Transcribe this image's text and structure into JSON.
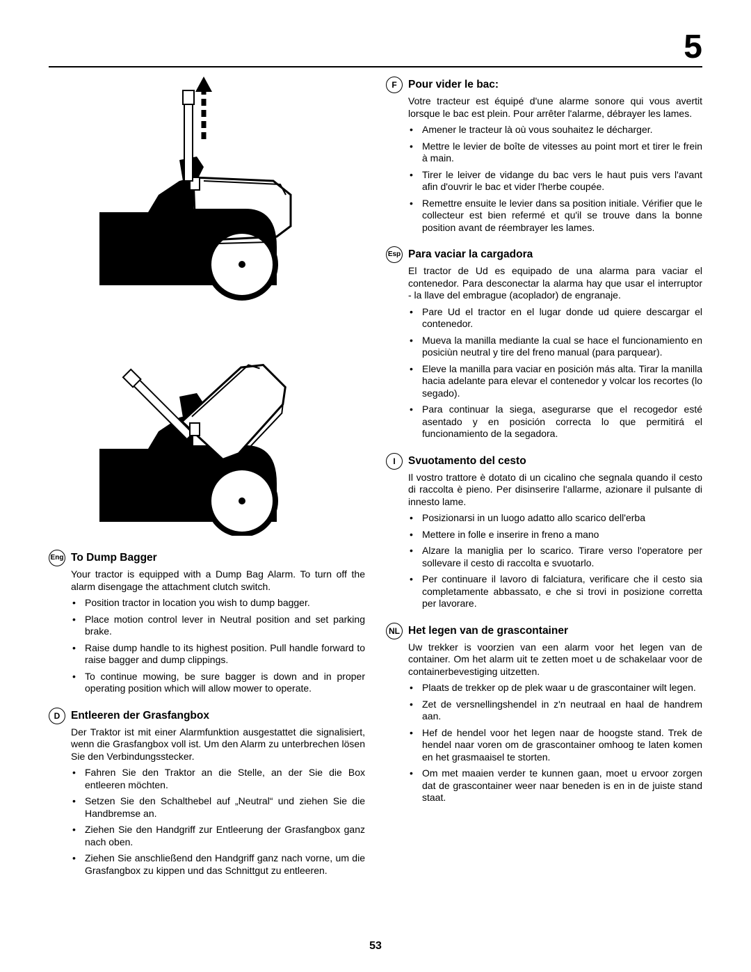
{
  "page_top": "5",
  "page_bottom": "53",
  "left": {
    "sections": [
      {
        "lang": "Eng",
        "title": "To Dump Bagger",
        "intro": "Your tractor is equipped with a Dump Bag Alarm. To turn off the alarm disengage the attachment clutch switch.",
        "bullets": [
          "Position tractor in location you wish to dump bagger.",
          "Place motion control lever in Neutral position and set parking brake.",
          "Raise dump handle to its highest position. Pull handle forward to raise bagger and dump clippings.",
          "To continue mowing, be sure bagger is down and in proper operating position which will allow mower to operate."
        ]
      },
      {
        "lang": "D",
        "title": "Entleeren der Grasfangbox",
        "intro": "Der Traktor ist mit einer Alarmfunktion ausgestattet die signalisiert, wenn die Grasfangbox voll ist. Um den Alarm zu unterbrechen lösen Sie den Verbindungsstecker.",
        "bullets": [
          "Fahren Sie den Traktor an die Stelle, an der Sie die Box entleeren möchten.",
          "Setzen Sie den Schalthebel auf „Neutral“ und ziehen Sie die Handbremse an.",
          "Ziehen Sie den Handgriff zur Entleerung der Grasfangbox ganz nach oben.",
          "Ziehen Sie anschließend den Handgriff ganz nach vorne, um die Grasfangbox zu kippen und das Schnittgut zu entleeren."
        ]
      }
    ]
  },
  "right": {
    "sections": [
      {
        "lang": "F",
        "title": "Pour vider le bac:",
        "intro": "Votre tracteur est équipé d'une alarme sonore qui vous avertit lorsque le bac est plein. Pour arrêter l'alarme, débrayer les lames.",
        "bullets": [
          "Amener le tracteur là où vous souhaitez le décharger.",
          "Mettre le levier de boîte de vitesses au point mort et tirer le frein à main.",
          "Tirer le leiver de vidange du bac vers le haut puis vers l'avant afin d'ouvrir le bac et vider l'herbe coupée.",
          "Remettre ensuite le levier dans sa position initiale. Vérifier que le collecteur est bien refermé et qu'il se trouve dans la bonne position avant de réembrayer les lames."
        ]
      },
      {
        "lang": "Esp",
        "title": "Para vaciar la cargadora",
        "intro": "El tractor de Ud es equipado de una alarma para vaciar el contenedor. Para desconectar la alarma hay que usar el interruptor - la llave del embrague (acoplador) de engranaje.",
        "bullets": [
          "Pare Ud el tractor en el lugar donde ud quiere descargar el contenedor.",
          "Mueva la manilla mediante la cual se hace el funcionamiento en posiciùn neutral y tire del freno manual (para parquear).",
          "Eleve la manilla para vaciar en posición más alta. Tirar la manilla hacia adelante para elevar el contenedor y volcar los recortes (lo segado).",
          "Para continuar la siega, asegurarse que el recogedor esté asentado y en posición correcta lo que permitirá el funcionamiento de la segadora."
        ]
      },
      {
        "lang": "I",
        "title": "Svuotamento del cesto",
        "intro": "Il vostro trattore è dotato di un cicalino che segnala quando il cesto di raccolta è pieno. Per disinserire l'allarme, azionare il pulsante di innesto lame.",
        "bullets": [
          "Posizionarsi in un luogo adatto allo scarico dell'erba",
          "Mettere in folle e inserire in freno a mano",
          "Alzare la maniglia per lo scarico. Tirare verso l'operatore per sollevare il cesto di raccolta e svuotarlo.",
          "Per continuare il lavoro di falciatura, verificare che il cesto sia completamente abbassato, e che si trovi in posizione corretta per lavorare."
        ]
      },
      {
        "lang": "NL",
        "title": "Het legen van de grascontainer",
        "intro": "Uw trekker is voorzien van een alarm voor het legen van de container. Om het alarm uit te zetten moet u de schakelaar voor de containerbevestiging uitzetten.",
        "bullets": [
          "Plaats de trekker op de plek waar u de grascontainer wilt legen.",
          "Zet de versnellingshendel in z'n neutraal en haal de handrem aan.",
          "Hef de hendel voor het legen naar de hoogste stand. Trek de hendel naar voren om de grascontainer omhoog te laten komen en het grasmaaisel te storten.",
          "Om met maaien verder te kunnen gaan, moet u ervoor zorgen dat de grascontainer weer naar beneden is en in de juiste stand staat."
        ]
      }
    ]
  }
}
